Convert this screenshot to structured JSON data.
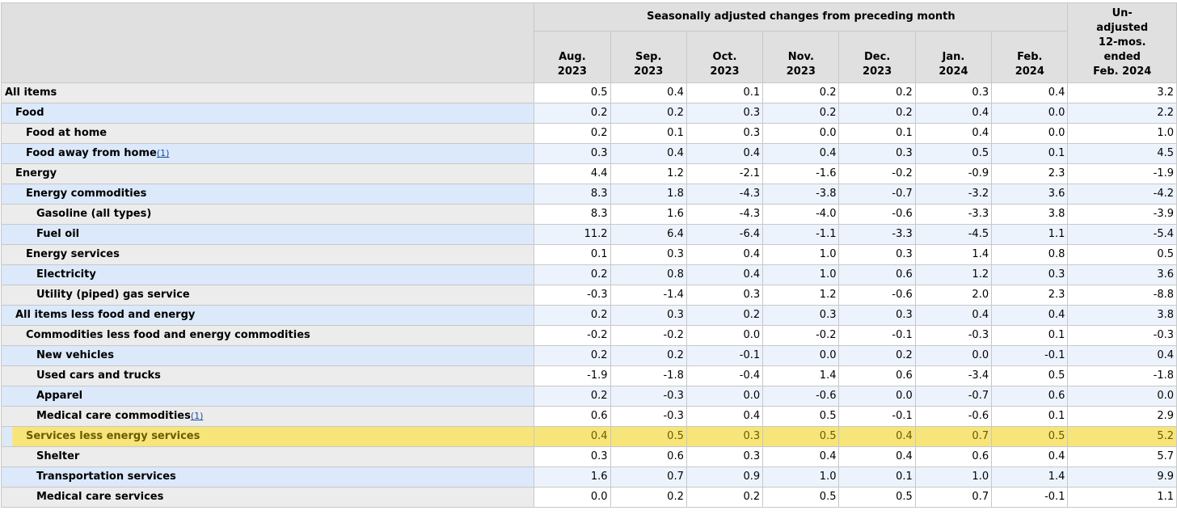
{
  "header": {
    "group_title": "Seasonally adjusted changes from preceding month",
    "months": [
      {
        "line1": "Aug.",
        "line2": "2023"
      },
      {
        "line1": "Sep.",
        "line2": "2023"
      },
      {
        "line1": "Oct.",
        "line2": "2023"
      },
      {
        "line1": "Nov.",
        "line2": "2023"
      },
      {
        "line1": "Dec.",
        "line2": "2023"
      },
      {
        "line1": "Jan.",
        "line2": "2024"
      },
      {
        "line1": "Feb.",
        "line2": "2024"
      }
    ],
    "unadjusted": [
      "Un-",
      "adjusted",
      "12-mos.",
      "ended",
      "Feb. 2024"
    ]
  },
  "rows": [
    {
      "label": "All items",
      "indent": 0,
      "footnote": "",
      "values": [
        "0.5",
        "0.4",
        "0.1",
        "0.2",
        "0.2",
        "0.3",
        "0.4",
        "3.2"
      ]
    },
    {
      "label": "Food",
      "indent": 1,
      "footnote": "",
      "values": [
        "0.2",
        "0.2",
        "0.3",
        "0.2",
        "0.2",
        "0.4",
        "0.0",
        "2.2"
      ]
    },
    {
      "label": "Food at home",
      "indent": 2,
      "footnote": "",
      "values": [
        "0.2",
        "0.1",
        "0.3",
        "0.0",
        "0.1",
        "0.4",
        "0.0",
        "1.0"
      ]
    },
    {
      "label": "Food away from home",
      "indent": 2,
      "footnote": "(1)",
      "values": [
        "0.3",
        "0.4",
        "0.4",
        "0.4",
        "0.3",
        "0.5",
        "0.1",
        "4.5"
      ]
    },
    {
      "label": "Energy",
      "indent": 1,
      "footnote": "",
      "values": [
        "4.4",
        "1.2",
        "-2.1",
        "-1.6",
        "-0.2",
        "-0.9",
        "2.3",
        "-1.9"
      ]
    },
    {
      "label": "Energy commodities",
      "indent": 2,
      "footnote": "",
      "values": [
        "8.3",
        "1.8",
        "-4.3",
        "-3.8",
        "-0.7",
        "-3.2",
        "3.6",
        "-4.2"
      ]
    },
    {
      "label": "Gasoline (all types)",
      "indent": 3,
      "footnote": "",
      "values": [
        "8.3",
        "1.6",
        "-4.3",
        "-4.0",
        "-0.6",
        "-3.3",
        "3.8",
        "-3.9"
      ]
    },
    {
      "label": "Fuel oil",
      "indent": 3,
      "footnote": "",
      "values": [
        "11.2",
        "6.4",
        "-6.4",
        "-1.1",
        "-3.3",
        "-4.5",
        "1.1",
        "-5.4"
      ]
    },
    {
      "label": "Energy services",
      "indent": 2,
      "footnote": "",
      "values": [
        "0.1",
        "0.3",
        "0.4",
        "1.0",
        "0.3",
        "1.4",
        "0.8",
        "0.5"
      ]
    },
    {
      "label": "Electricity",
      "indent": 3,
      "footnote": "",
      "values": [
        "0.2",
        "0.8",
        "0.4",
        "1.0",
        "0.6",
        "1.2",
        "0.3",
        "3.6"
      ]
    },
    {
      "label": "Utility (piped) gas service",
      "indent": 3,
      "footnote": "",
      "values": [
        "-0.3",
        "-1.4",
        "0.3",
        "1.2",
        "-0.6",
        "2.0",
        "2.3",
        "-8.8"
      ]
    },
    {
      "label": "All items less food and energy",
      "indent": 1,
      "footnote": "",
      "values": [
        "0.2",
        "0.3",
        "0.2",
        "0.3",
        "0.3",
        "0.4",
        "0.4",
        "3.8"
      ]
    },
    {
      "label": "Commodities less food and energy commodities",
      "indent": 2,
      "footnote": "",
      "values": [
        "-0.2",
        "-0.2",
        "0.0",
        "-0.2",
        "-0.1",
        "-0.3",
        "0.1",
        "-0.3"
      ]
    },
    {
      "label": "New vehicles",
      "indent": 3,
      "footnote": "",
      "values": [
        "0.2",
        "0.2",
        "-0.1",
        "0.0",
        "0.2",
        "0.0",
        "-0.1",
        "0.4"
      ]
    },
    {
      "label": "Used cars and trucks",
      "indent": 3,
      "footnote": "",
      "values": [
        "-1.9",
        "-1.8",
        "-0.4",
        "1.4",
        "0.6",
        "-3.4",
        "0.5",
        "-1.8"
      ]
    },
    {
      "label": "Apparel",
      "indent": 3,
      "footnote": "",
      "values": [
        "0.2",
        "-0.3",
        "0.0",
        "-0.6",
        "0.0",
        "-0.7",
        "0.6",
        "0.0"
      ]
    },
    {
      "label": "Medical care commodities",
      "indent": 3,
      "footnote": "(1)",
      "values": [
        "0.6",
        "-0.3",
        "0.4",
        "0.5",
        "-0.1",
        "-0.6",
        "0.1",
        "2.9"
      ]
    },
    {
      "label": "Services less energy services",
      "indent": 2,
      "footnote": "",
      "highlight": true,
      "values": [
        "0.4",
        "0.5",
        "0.3",
        "0.5",
        "0.4",
        "0.7",
        "0.5",
        "5.2"
      ]
    },
    {
      "label": "Shelter",
      "indent": 3,
      "footnote": "",
      "values": [
        "0.3",
        "0.6",
        "0.3",
        "0.4",
        "0.4",
        "0.6",
        "0.4",
        "5.7"
      ]
    },
    {
      "label": "Transportation services",
      "indent": 3,
      "footnote": "",
      "values": [
        "1.6",
        "0.7",
        "0.9",
        "1.0",
        "0.1",
        "1.0",
        "1.4",
        "9.9"
      ]
    },
    {
      "label": "Medical care services",
      "indent": 3,
      "footnote": "",
      "values": [
        "0.0",
        "0.2",
        "0.2",
        "0.5",
        "0.5",
        "0.7",
        "-0.1",
        "1.1"
      ]
    }
  ],
  "colors": {
    "header_bg": "#e0e0e0",
    "row_label_alt": "#dbe9fb",
    "row_label": "#ececec",
    "highlight": "#f7e57a",
    "footnote_link": "#1a4da1"
  }
}
